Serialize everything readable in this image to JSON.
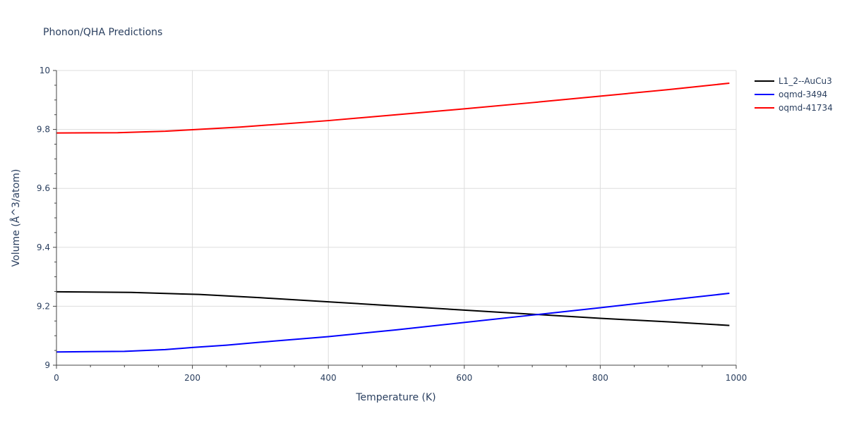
{
  "chart_data": {
    "type": "line",
    "title": "Phonon/QHA Predictions",
    "xlabel": "Temperature (K)",
    "ylabel": "Volume (Å^3/atom)",
    "xlim": [
      0,
      1000
    ],
    "ylim": [
      9.0,
      10.0
    ],
    "x_ticks": [
      0,
      200,
      400,
      600,
      800,
      1000
    ],
    "y_ticks": [
      9.0,
      9.2,
      9.4,
      9.6,
      9.8,
      10.0
    ],
    "y_tick_labels": [
      "9",
      "9.2",
      "9.4",
      "9.6",
      "9.8",
      "10"
    ],
    "grid": true,
    "legend_position": "top-right",
    "series": [
      {
        "name": "L1_2--AuCu3",
        "color": "#000000",
        "x": [
          0,
          110,
          210,
          300,
          400,
          500,
          600,
          700,
          800,
          900,
          990
        ],
        "y": [
          9.249,
          9.247,
          9.24,
          9.229,
          9.215,
          9.201,
          9.187,
          9.173,
          9.159,
          9.147,
          9.135
        ]
      },
      {
        "name": "oqmd-3494",
        "color": "#0000ff",
        "x": [
          0,
          100,
          160,
          200,
          250,
          300,
          400,
          500,
          600,
          700,
          800,
          900,
          990
        ],
        "y": [
          9.045,
          9.047,
          9.053,
          9.06,
          9.068,
          9.078,
          9.097,
          9.12,
          9.145,
          9.17,
          9.195,
          9.221,
          9.244
        ]
      },
      {
        "name": "oqmd-41734",
        "color": "#ff0000",
        "x": [
          0,
          90,
          160,
          200,
          270,
          400,
          500,
          600,
          700,
          800,
          900,
          990
        ],
        "y": [
          9.788,
          9.789,
          9.794,
          9.799,
          9.808,
          9.83,
          9.85,
          9.87,
          9.891,
          9.913,
          9.935,
          9.957
        ]
      }
    ]
  }
}
